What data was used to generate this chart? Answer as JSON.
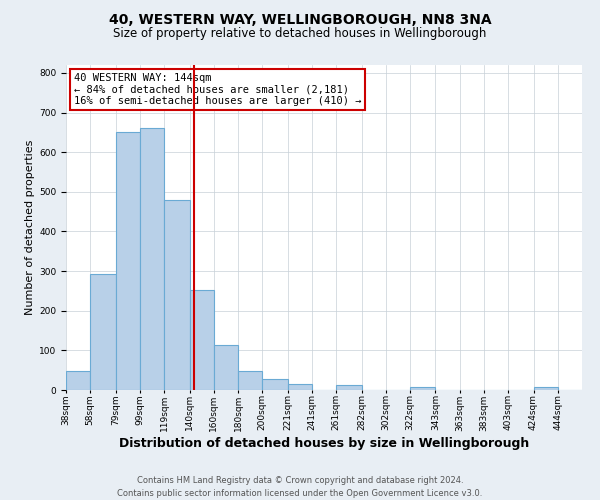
{
  "title": "40, WESTERN WAY, WELLINGBOROUGH, NN8 3NA",
  "subtitle": "Size of property relative to detached houses in Wellingborough",
  "xlabel": "Distribution of detached houses by size in Wellingborough",
  "ylabel": "Number of detached properties",
  "bin_labels": [
    "38sqm",
    "58sqm",
    "79sqm",
    "99sqm",
    "119sqm",
    "140sqm",
    "160sqm",
    "180sqm",
    "200sqm",
    "221sqm",
    "241sqm",
    "261sqm",
    "282sqm",
    "302sqm",
    "322sqm",
    "343sqm",
    "363sqm",
    "383sqm",
    "403sqm",
    "424sqm",
    "444sqm"
  ],
  "bin_edges": [
    38,
    58,
    79,
    99,
    119,
    140,
    160,
    180,
    200,
    221,
    241,
    261,
    282,
    302,
    322,
    343,
    363,
    383,
    403,
    424,
    444,
    464
  ],
  "bar_heights": [
    47,
    293,
    651,
    660,
    480,
    253,
    113,
    48,
    28,
    14,
    0,
    12,
    0,
    0,
    7,
    0,
    0,
    0,
    0,
    7,
    0
  ],
  "bar_color": "#b8d0e8",
  "bar_edgecolor": "#6aaad4",
  "bar_linewidth": 0.8,
  "vline_x": 144,
  "vline_color": "#cc0000",
  "vline_linewidth": 1.5,
  "annotation_line1": "40 WESTERN WAY: 144sqm",
  "annotation_line2": "← 84% of detached houses are smaller (2,181)",
  "annotation_line3": "16% of semi-detached houses are larger (410) →",
  "annotation_box_edgecolor": "#cc0000",
  "annotation_box_facecolor": "white",
  "ylim": [
    0,
    820
  ],
  "yticks": [
    0,
    100,
    200,
    300,
    400,
    500,
    600,
    700,
    800
  ],
  "background_color": "#e8eef4",
  "plot_bg_color": "white",
  "grid_color": "#c8d0d8",
  "footer_line1": "Contains HM Land Registry data © Crown copyright and database right 2024.",
  "footer_line2": "Contains public sector information licensed under the Open Government Licence v3.0.",
  "title_fontsize": 10,
  "subtitle_fontsize": 8.5,
  "xlabel_fontsize": 9,
  "ylabel_fontsize": 8,
  "tick_fontsize": 6.5,
  "annotation_fontsize": 7.5,
  "footer_fontsize": 6
}
